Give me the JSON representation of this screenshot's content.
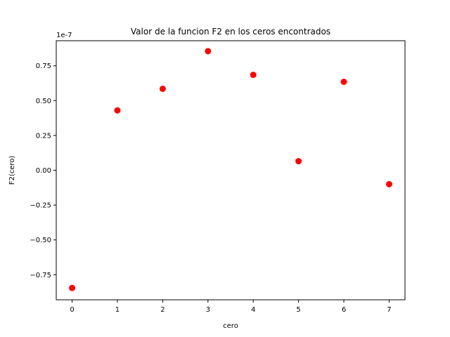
{
  "chart_data": {
    "type": "scatter",
    "title": "Valor de la funcion F2 en los ceros encontrados",
    "xlabel": "cero",
    "ylabel": "F2(cero)",
    "y_offset_label": "1e-7",
    "y_scale_factor": 1e-07,
    "xlim": [
      -0.35,
      7.35
    ],
    "ylim": [
      -9.3e-08,
      9.3e-08
    ],
    "x_ticks": [
      0,
      1,
      2,
      3,
      4,
      5,
      6,
      7
    ],
    "x_tick_labels": [
      "0",
      "1",
      "2",
      "3",
      "4",
      "5",
      "6",
      "7"
    ],
    "y_ticks": [
      -7.5e-08,
      -5e-08,
      -2.5e-08,
      0,
      2.5e-08,
      5e-08,
      7.5e-08
    ],
    "y_tick_labels": [
      "−0.75",
      "−0.50",
      "−0.25",
      "0.00",
      "0.25",
      "0.50",
      "0.75"
    ],
    "grid": false,
    "series": [
      {
        "color": "#ff0000",
        "marker": "circle",
        "x": [
          0,
          1,
          2,
          3,
          4,
          5,
          6,
          7
        ],
        "y": [
          -8.45e-08,
          4.3e-08,
          5.85e-08,
          8.55e-08,
          6.85e-08,
          6.5e-09,
          6.35e-08,
          -1e-08
        ]
      }
    ]
  }
}
